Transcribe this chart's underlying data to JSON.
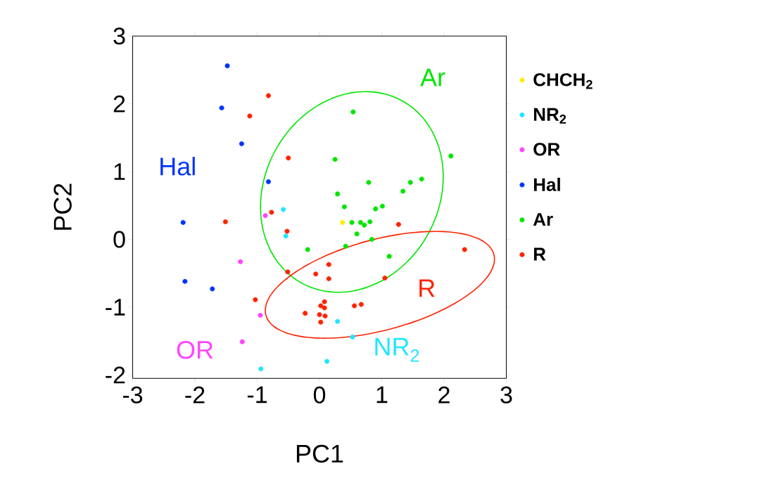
{
  "chart_data": {
    "type": "scatter",
    "xlabel": "PC1",
    "ylabel": "PC2",
    "xlim": [
      -3,
      3
    ],
    "ylim": [
      -2.05,
      3
    ],
    "xticks": [
      -3,
      -2,
      -1,
      0,
      1,
      2,
      3
    ],
    "yticks": [
      -2,
      -1,
      0,
      1,
      2,
      3
    ],
    "legend": "right",
    "marker": "circle",
    "series": [
      {
        "name": "CHCH$_{2}$",
        "color": "#ffee00",
        "x": [
          0.37
        ],
        "values": [
          0.25
        ]
      },
      {
        "name": "NR$_{2}$",
        "color": "#22e5ff",
        "x": [
          -0.58,
          -0.54,
          -0.94,
          0.29,
          0.53,
          0.12
        ],
        "values": [
          0.44,
          0.05,
          -1.91,
          -1.21,
          -1.44,
          -1.8
        ]
      },
      {
        "name": "OR",
        "color": "#ff44ff",
        "x": [
          -0.87,
          -1.27,
          -0.95,
          -1.24
        ],
        "values": [
          0.35,
          -0.33,
          -1.12,
          -1.51
        ]
      },
      {
        "name": "Hal",
        "color": "#0033ff",
        "x": [
          -1.48,
          -1.57,
          -1.25,
          -0.82,
          -2.19,
          -2.16,
          -1.72
        ],
        "values": [
          2.56,
          1.94,
          1.41,
          0.85,
          0.25,
          -0.62,
          -0.73
        ]
      },
      {
        "name": "Ar",
        "color": "#00e600",
        "x": [
          0.54,
          0.25,
          2.11,
          0.79,
          0.29,
          1.46,
          1.64,
          1.34,
          0.4,
          0.9,
          1.01,
          0.52,
          0.66,
          0.72,
          0.81,
          0.6,
          0.84,
          0.42,
          -0.19,
          1.12
        ],
        "values": [
          1.88,
          1.18,
          1.23,
          0.84,
          0.67,
          0.84,
          0.89,
          0.71,
          0.48,
          0.45,
          0.49,
          0.25,
          0.25,
          0.21,
          0.26,
          0.08,
          0.0,
          -0.1,
          -0.15,
          -0.25
        ]
      },
      {
        "name": "R",
        "color": "#ff2200",
        "x": [
          -0.82,
          -1.12,
          -0.5,
          -0.77,
          -1.51,
          -0.52,
          -0.51,
          -1.03,
          -0.23,
          1.27,
          2.33,
          -0.06,
          0.15,
          0.15,
          1.05,
          0.08,
          0.02,
          0.08,
          0.0,
          0.09,
          0.02,
          0.56,
          0.67
        ],
        "values": [
          2.12,
          1.82,
          1.2,
          0.4,
          0.26,
          0.12,
          -0.48,
          -0.89,
          -1.09,
          0.22,
          -0.15,
          -0.51,
          -0.37,
          -0.58,
          -0.57,
          -0.92,
          -0.98,
          -1.01,
          -1.11,
          -1.13,
          -1.22,
          -0.98,
          -0.96
        ]
      }
    ],
    "annotations": [
      "Hal",
      "Ar",
      "R",
      "OR",
      "NR$_{2}$"
    ]
  }
}
